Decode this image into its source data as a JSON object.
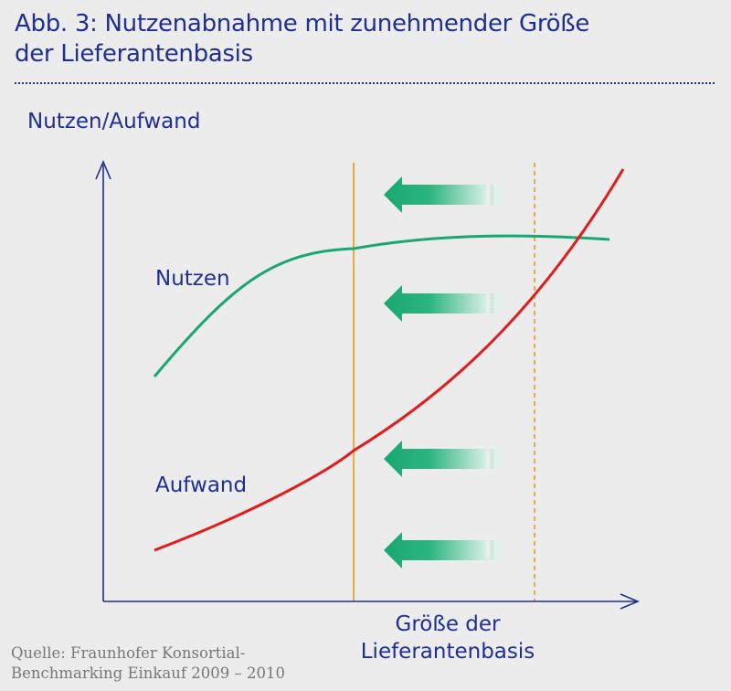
{
  "figure": {
    "title_line1": "Abb. 3: Nutzenabnahme mit zunehmender Größe",
    "title_line2": "der Lieferantenbasis",
    "y_axis_label": "Nutzen/Aufwand",
    "x_axis_label_line1": "Größe der",
    "x_axis_label_line2": "Lieferantenbasis",
    "source_line1": "Quelle: Fraunhofer Konsortial-",
    "source_line2": "Benchmarking Einkauf 2009 – 2010"
  },
  "curves": {
    "nutzen": {
      "label": "Nutzen",
      "color": "#1aa772"
    },
    "aufwand": {
      "label": "Aufwand",
      "color": "#e31b1b"
    }
  },
  "colors": {
    "text": "#1e2f8e",
    "axis": "#1e2f8e",
    "marker_line": "#f0961e",
    "arrow": "#1aa772",
    "background": "#ececec"
  },
  "arrows": {
    "count": 4,
    "direction": "left"
  }
}
